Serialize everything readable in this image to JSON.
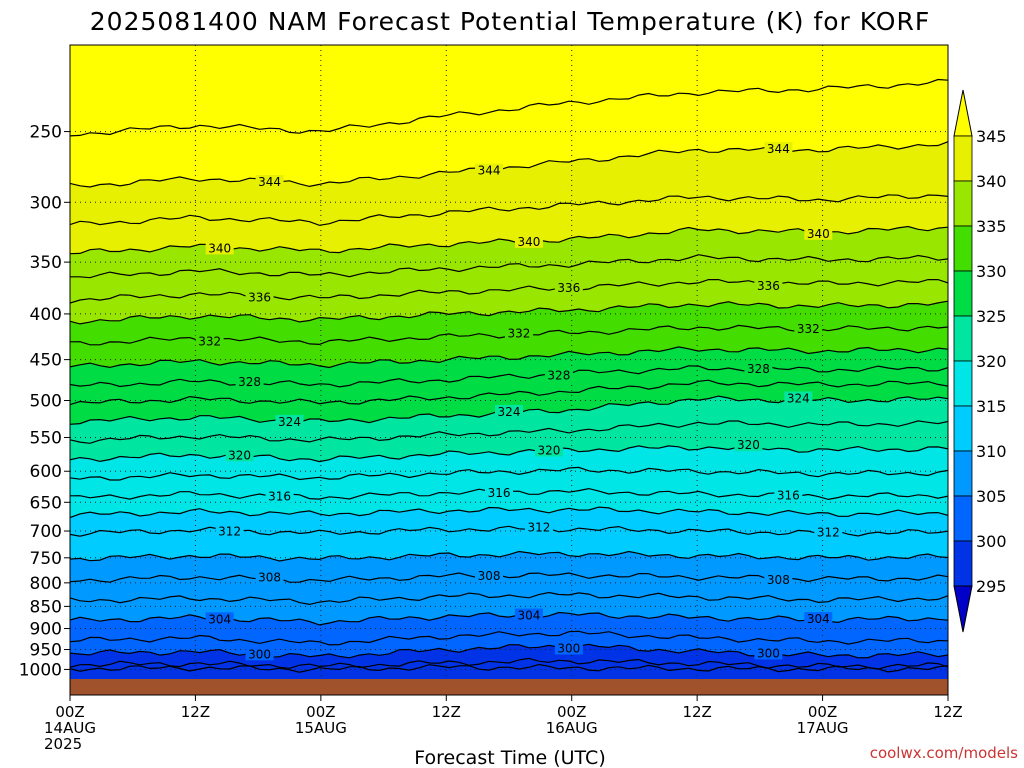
{
  "chart_data": {
    "type": "heatmap",
    "title": "2025081400 NAM Forecast Potential Temperature (K) for KORF",
    "xlabel": "Forecast Time (UTC)",
    "ylabel": "",
    "x_ticks": [
      {
        "hour": 0,
        "line1": "00Z",
        "line2": "14AUG",
        "line3": "2025"
      },
      {
        "hour": 12,
        "line1": "12Z",
        "line2": "",
        "line3": ""
      },
      {
        "hour": 24,
        "line1": "00Z",
        "line2": "15AUG",
        "line3": ""
      },
      {
        "hour": 36,
        "line1": "12Z",
        "line2": "",
        "line3": ""
      },
      {
        "hour": 48,
        "line1": "00Z",
        "line2": "16AUG",
        "line3": ""
      },
      {
        "hour": 60,
        "line1": "12Z",
        "line2": "",
        "line3": ""
      },
      {
        "hour": 72,
        "line1": "00Z",
        "line2": "17AUG",
        "line3": ""
      },
      {
        "hour": 84,
        "line1": "12Z",
        "line2": "",
        "line3": ""
      }
    ],
    "xlim": [
      0,
      84
    ],
    "y_ticks": [
      250,
      300,
      350,
      400,
      450,
      500,
      550,
      600,
      650,
      700,
      750,
      800,
      850,
      900,
      950,
      1000
    ],
    "ylim": [
      200,
      1025
    ],
    "y_scale": "log",
    "grid": true,
    "colorbar": {
      "levels": [
        295,
        300,
        305,
        310,
        315,
        320,
        325,
        330,
        335,
        340,
        345
      ],
      "colors": [
        "#0000c8",
        "#0033e6",
        "#0066ff",
        "#0099ff",
        "#00ccff",
        "#00e6e6",
        "#00e6a0",
        "#00dd44",
        "#44dd00",
        "#99e600",
        "#e6f000",
        "#ffff00"
      ]
    },
    "contours": [
      {
        "level": 296,
        "p": [
          998,
          996,
          1000,
          994,
          996,
          998,
          999,
          998
        ],
        "label": ""
      },
      {
        "level": 298,
        "p": [
          988,
          985,
          992,
          983,
          978,
          985,
          992,
          990
        ],
        "label": ""
      },
      {
        "level": 300,
        "p": [
          960,
          955,
          968,
          950,
          940,
          955,
          965,
          962
        ],
        "label": "300"
      },
      {
        "level": 302,
        "p": [
          928,
          922,
          935,
          918,
          910,
          922,
          930,
          928
        ],
        "label": ""
      },
      {
        "level": 304,
        "p": [
          882,
          875,
          885,
          872,
          868,
          875,
          880,
          876
        ],
        "label": "304"
      },
      {
        "level": 306,
        "p": [
          838,
          832,
          840,
          828,
          825,
          830,
          836,
          832
        ],
        "label": ""
      },
      {
        "level": 308,
        "p": [
          795,
          788,
          795,
          786,
          784,
          788,
          792,
          790
        ],
        "label": "308"
      },
      {
        "level": 310,
        "p": [
          752,
          746,
          752,
          745,
          742,
          746,
          750,
          748
        ],
        "label": ""
      },
      {
        "level": 312,
        "p": [
          705,
          698,
          704,
          697,
          696,
          700,
          704,
          702
        ],
        "label": "312"
      },
      {
        "level": 314,
        "p": [
          672,
          666,
          670,
          664,
          662,
          666,
          670,
          668
        ],
        "label": ""
      },
      {
        "level": 316,
        "p": [
          643,
          636,
          642,
          634,
          632,
          636,
          640,
          638
        ],
        "label": "316"
      },
      {
        "level": 318,
        "p": [
          612,
          606,
          610,
          603,
          598,
          600,
          604,
          602
        ],
        "label": ""
      },
      {
        "level": 320,
        "p": [
          582,
          575,
          582,
          574,
          568,
          564,
          568,
          566
        ],
        "label": "320"
      },
      {
        "level": 322,
        "p": [
          555,
          548,
          554,
          546,
          540,
          530,
          532,
          530
        ],
        "label": ""
      },
      {
        "level": 324,
        "p": [
          528,
          522,
          528,
          520,
          512,
          498,
          500,
          498
        ],
        "label": "324"
      },
      {
        "level": 326,
        "p": [
          504,
          498,
          503,
          496,
          488,
          478,
          480,
          478
        ],
        "label": ""
      },
      {
        "level": 328,
        "p": [
          482,
          476,
          480,
          474,
          466,
          460,
          462,
          460
        ],
        "label": "328"
      },
      {
        "level": 330,
        "p": [
          458,
          452,
          456,
          450,
          444,
          438,
          440,
          438
        ],
        "label": ""
      },
      {
        "level": 332,
        "p": [
          432,
          426,
          430,
          424,
          420,
          414,
          416,
          414
        ],
        "label": "332"
      },
      {
        "level": 334,
        "p": [
          408,
          402,
          406,
          400,
          396,
          390,
          392,
          390
        ],
        "label": ""
      },
      {
        "level": 336,
        "p": [
          386,
          380,
          384,
          378,
          374,
          368,
          370,
          368
        ],
        "label": "336"
      },
      {
        "level": 338,
        "p": [
          364,
          358,
          362,
          356,
          352,
          346,
          348,
          346
        ],
        "label": ""
      },
      {
        "level": 340,
        "p": [
          342,
          336,
          340,
          334,
          330,
          322,
          324,
          320
        ],
        "label": "340"
      },
      {
        "level": 342,
        "p": [
          318,
          312,
          316,
          308,
          302,
          296,
          298,
          294
        ],
        "label": ""
      },
      {
        "level": 344,
        "p": [
          288,
          282,
          286,
          278,
          270,
          262,
          262,
          258
        ],
        "label": "344"
      },
      {
        "level": 346,
        "p": [
          252,
          246,
          250,
          240,
          232,
          226,
          224,
          220
        ],
        "label": ""
      }
    ]
  },
  "credit": "coolwx.com/models"
}
